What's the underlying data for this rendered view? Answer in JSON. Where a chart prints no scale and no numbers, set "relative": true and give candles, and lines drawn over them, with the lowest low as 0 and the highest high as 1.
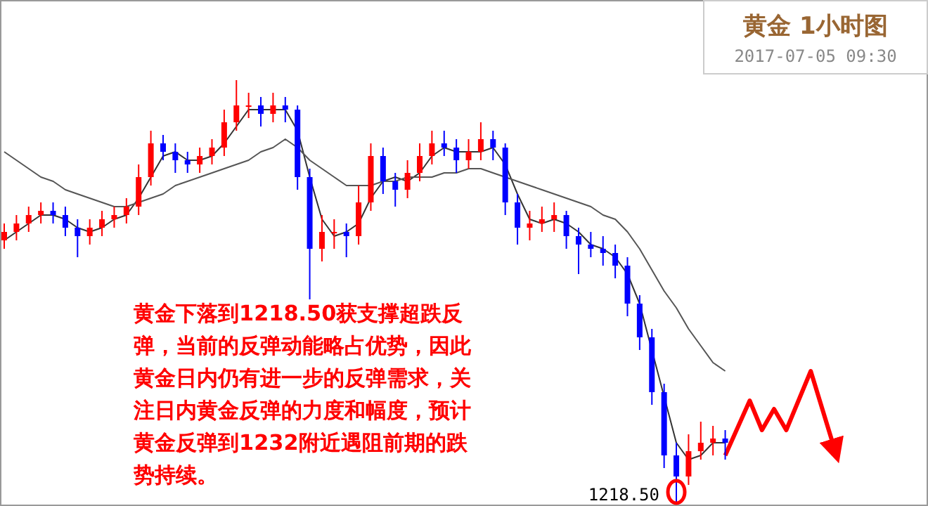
{
  "chart_data": {
    "type": "candlestick",
    "relative": true,
    "title": "黄金  1小时图",
    "subtitle": "2017-07-05 09:30",
    "annotations": [
      "黄金下落到1218.50获支撑超跌反弹，当前的反弹动能略占优势，因此黄金日内仍有进一步的反弹需求，关注日内黄金反弹的力度和幅度，预计黄金反弹到1232附近遇阻前期的跌势持续。",
      "1218.50"
    ],
    "categories": [
      null,
      null,
      null,
      null,
      null,
      null,
      null,
      null,
      null,
      null,
      null,
      null,
      null,
      null,
      null,
      null,
      null,
      null,
      null,
      null,
      null,
      null,
      null,
      null,
      null,
      null,
      null,
      null,
      null,
      null,
      null,
      null,
      null,
      null,
      null,
      null,
      null,
      null,
      null,
      null,
      null,
      null,
      null,
      null,
      null,
      null,
      null,
      null,
      null,
      null,
      null,
      null,
      null,
      null,
      null,
      null,
      null,
      null,
      null,
      null,
      null,
      null,
      null,
      null,
      null,
      null,
      null,
      null,
      null
    ],
    "ohlc": [
      [
        0.62,
        0.66,
        0.6,
        0.64
      ],
      [
        0.64,
        0.68,
        0.62,
        0.66
      ],
      [
        0.66,
        0.7,
        0.64,
        0.68
      ],
      [
        0.68,
        0.71,
        0.66,
        0.69
      ],
      [
        0.69,
        0.71,
        0.66,
        0.68
      ],
      [
        0.68,
        0.7,
        0.63,
        0.65
      ],
      [
        0.65,
        0.67,
        0.58,
        0.63
      ],
      [
        0.63,
        0.67,
        0.61,
        0.65
      ],
      [
        0.65,
        0.69,
        0.63,
        0.67
      ],
      [
        0.67,
        0.7,
        0.65,
        0.68
      ],
      [
        0.68,
        0.72,
        0.66,
        0.7
      ],
      [
        0.7,
        0.8,
        0.68,
        0.77
      ],
      [
        0.77,
        0.88,
        0.75,
        0.85
      ],
      [
        0.85,
        0.87,
        0.81,
        0.83
      ],
      [
        0.83,
        0.85,
        0.78,
        0.81
      ],
      [
        0.81,
        0.83,
        0.78,
        0.8
      ],
      [
        0.8,
        0.84,
        0.78,
        0.82
      ],
      [
        0.82,
        0.86,
        0.8,
        0.84
      ],
      [
        0.84,
        0.93,
        0.82,
        0.9
      ],
      [
        0.9,
        1.0,
        0.88,
        0.94
      ],
      [
        0.94,
        0.97,
        0.91,
        0.94
      ],
      [
        0.94,
        0.96,
        0.89,
        0.92
      ],
      [
        0.92,
        0.97,
        0.9,
        0.94
      ],
      [
        0.94,
        0.96,
        0.9,
        0.93
      ],
      [
        0.93,
        0.94,
        0.74,
        0.77
      ],
      [
        0.77,
        0.79,
        0.48,
        0.6
      ],
      [
        0.6,
        0.68,
        0.57,
        0.64
      ],
      [
        0.64,
        0.67,
        0.6,
        0.64
      ],
      [
        0.64,
        0.66,
        0.58,
        0.63
      ],
      [
        0.63,
        0.75,
        0.61,
        0.71
      ],
      [
        0.71,
        0.85,
        0.69,
        0.82
      ],
      [
        0.82,
        0.84,
        0.73,
        0.76
      ],
      [
        0.76,
        0.78,
        0.7,
        0.74
      ],
      [
        0.74,
        0.81,
        0.72,
        0.78
      ],
      [
        0.78,
        0.85,
        0.76,
        0.82
      ],
      [
        0.82,
        0.88,
        0.8,
        0.85
      ],
      [
        0.85,
        0.88,
        0.82,
        0.84
      ],
      [
        0.84,
        0.86,
        0.78,
        0.81
      ],
      [
        0.81,
        0.86,
        0.79,
        0.83
      ],
      [
        0.83,
        0.9,
        0.81,
        0.86
      ],
      [
        0.86,
        0.88,
        0.81,
        0.84
      ],
      [
        0.84,
        0.85,
        0.68,
        0.71
      ],
      [
        0.71,
        0.73,
        0.61,
        0.65
      ],
      [
        0.65,
        0.69,
        0.62,
        0.66
      ],
      [
        0.66,
        0.7,
        0.64,
        0.67
      ],
      [
        0.67,
        0.71,
        0.64,
        0.68
      ],
      [
        0.68,
        0.69,
        0.6,
        0.63
      ],
      [
        0.63,
        0.65,
        0.54,
        0.61
      ],
      [
        0.61,
        0.64,
        0.58,
        0.6
      ],
      [
        0.6,
        0.63,
        0.56,
        0.59
      ],
      [
        0.59,
        0.61,
        0.53,
        0.56
      ],
      [
        0.56,
        0.58,
        0.44,
        0.47
      ],
      [
        0.47,
        0.49,
        0.36,
        0.39
      ],
      [
        0.39,
        0.41,
        0.23,
        0.26
      ],
      [
        0.26,
        0.28,
        0.08,
        0.11
      ],
      [
        0.11,
        0.14,
        0.0,
        0.06
      ],
      [
        0.06,
        0.16,
        0.04,
        0.12
      ],
      [
        0.12,
        0.19,
        0.1,
        0.14
      ],
      [
        0.14,
        0.18,
        0.11,
        0.15
      ],
      [
        0.15,
        0.17,
        0.1,
        0.14
      ],
      null,
      null,
      null,
      null,
      null,
      null,
      null,
      null,
      null
    ],
    "colors": [
      "#ff0000",
      "#ff0000",
      "#ff0000",
      "#ff0000",
      "#0000ff",
      "#0000ff",
      "#0000ff",
      "#ff0000",
      "#ff0000",
      "#ff0000",
      "#ff0000",
      "#ff0000",
      "#ff0000",
      "#0000ff",
      "#0000ff",
      "#0000ff",
      "#ff0000",
      "#ff0000",
      "#ff0000",
      "#ff0000",
      "#ff0000",
      "#0000ff",
      "#ff0000",
      "#0000ff",
      "#0000ff",
      "#0000ff",
      "#ff0000",
      "#ff0000",
      "#0000ff",
      "#ff0000",
      "#ff0000",
      "#0000ff",
      "#0000ff",
      "#ff0000",
      "#ff0000",
      "#ff0000",
      "#0000ff",
      "#0000ff",
      "#ff0000",
      "#ff0000",
      "#0000ff",
      "#0000ff",
      "#0000ff",
      "#ff0000",
      "#ff0000",
      "#ff0000",
      "#0000ff",
      "#0000ff",
      "#0000ff",
      "#0000ff",
      "#0000ff",
      "#0000ff",
      "#0000ff",
      "#0000ff",
      "#0000ff",
      "#0000ff",
      "#ff0000",
      "#ff0000",
      "#ff0000",
      "#0000ff",
      null,
      null,
      null,
      null,
      null,
      null,
      null,
      null,
      null
    ],
    "series": [
      {
        "type": "line",
        "color": "#333333",
        "values": [
          0.62,
          0.64,
          0.66,
          0.68,
          0.68,
          0.67,
          0.65,
          0.64,
          0.65,
          0.67,
          0.68,
          0.72,
          0.77,
          0.82,
          0.83,
          0.81,
          0.81,
          0.82,
          0.85,
          0.89,
          0.93,
          0.93,
          0.93,
          0.93,
          0.88,
          0.77,
          0.67,
          0.63,
          0.64,
          0.66,
          0.72,
          0.76,
          0.77,
          0.76,
          0.78,
          0.82,
          0.84,
          0.83,
          0.83,
          0.83,
          0.84,
          0.8,
          0.73,
          0.67,
          0.66,
          0.67,
          0.66,
          0.64,
          0.61,
          0.6,
          0.58,
          0.54,
          0.47,
          null,
          0.25,
          0.14,
          0.1,
          0.11,
          0.14,
          0.14,
          null,
          null,
          null,
          null,
          null,
          null,
          null,
          null,
          null
        ]
      },
      {
        "type": "line",
        "color": "#555555",
        "values": [
          0.83,
          0.81,
          0.79,
          0.77,
          0.76,
          0.74,
          0.73,
          0.72,
          0.71,
          0.7,
          0.7,
          0.71,
          0.72,
          0.73,
          0.75,
          0.76,
          0.77,
          0.78,
          0.79,
          0.8,
          0.81,
          0.83,
          0.84,
          0.86,
          0.84,
          0.81,
          0.79,
          0.77,
          0.75,
          0.75,
          0.75,
          0.76,
          0.76,
          0.77,
          0.77,
          0.77,
          0.78,
          0.78,
          0.79,
          0.79,
          0.78,
          0.77,
          0.76,
          0.75,
          0.74,
          0.73,
          0.72,
          0.71,
          0.7,
          0.68,
          0.67,
          0.64,
          0.6,
          0.55,
          0.5,
          0.46,
          0.41,
          0.37,
          0.33,
          0.31,
          null,
          null,
          null,
          null,
          null,
          null,
          null,
          null,
          null
        ]
      },
      {
        "type": "line",
        "color": "#ff0000",
        "values": [
          null,
          null,
          null,
          null,
          null,
          null,
          null,
          null,
          null,
          null,
          null,
          null,
          null,
          null,
          null,
          null,
          null,
          null,
          null,
          null,
          null,
          null,
          null,
          null,
          null,
          null,
          null,
          null,
          null,
          null,
          null,
          null,
          null,
          null,
          null,
          null,
          null,
          null,
          null,
          null,
          null,
          null,
          null,
          null,
          null,
          null,
          null,
          null,
          null,
          null,
          null,
          null,
          null,
          null,
          null,
          null,
          null,
          null,
          null,
          0.11,
          null,
          0.24,
          0.17,
          0.22,
          0.17,
          null,
          0.31,
          null,
          0.12
        ]
      }
    ]
  }
}
